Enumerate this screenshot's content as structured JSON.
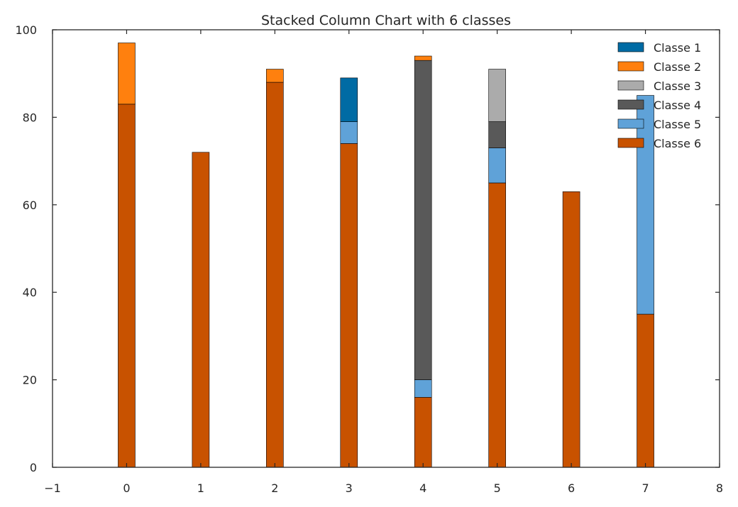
{
  "chart_data": {
    "type": "bar",
    "stacked": true,
    "title": "Stacked Column Chart with 6 classes",
    "xlabel": "",
    "ylabel": "",
    "xlim": [
      -1,
      8
    ],
    "ylim": [
      0,
      100
    ],
    "x_ticks": [
      "−1",
      "0",
      "1",
      "2",
      "3",
      "4",
      "5",
      "6",
      "7",
      "8"
    ],
    "y_ticks": [
      "0",
      "20",
      "40",
      "60",
      "80",
      "100"
    ],
    "categories": [
      "0",
      "1",
      "2",
      "3",
      "4",
      "5",
      "6",
      "7"
    ],
    "grid": false,
    "legend_position": "top-right",
    "series": [
      {
        "name": "Classe 6",
        "color": "#c85200",
        "values": [
          83,
          72,
          88,
          74,
          16,
          65,
          63,
          35
        ]
      },
      {
        "name": "Classe 5",
        "color": "#5fa2d8",
        "values": [
          0,
          0,
          0,
          5,
          4,
          8,
          0,
          50
        ]
      },
      {
        "name": "Classe 4",
        "color": "#595959",
        "values": [
          0,
          0,
          0,
          0,
          73,
          6,
          0,
          0
        ]
      },
      {
        "name": "Classe 3",
        "color": "#ababab",
        "values": [
          0,
          0,
          0,
          0,
          0,
          12,
          0,
          0
        ]
      },
      {
        "name": "Classe 2",
        "color": "#ff800e",
        "values": [
          14,
          0,
          3,
          0,
          1,
          0,
          0,
          0
        ]
      },
      {
        "name": "Classe 1",
        "color": "#006ba4",
        "values": [
          0,
          0,
          0,
          10,
          0,
          0,
          0,
          0
        ]
      }
    ],
    "legend_order": [
      "Classe 1",
      "Classe 2",
      "Classe 3",
      "Classe 4",
      "Classe 5",
      "Classe 6"
    ]
  }
}
